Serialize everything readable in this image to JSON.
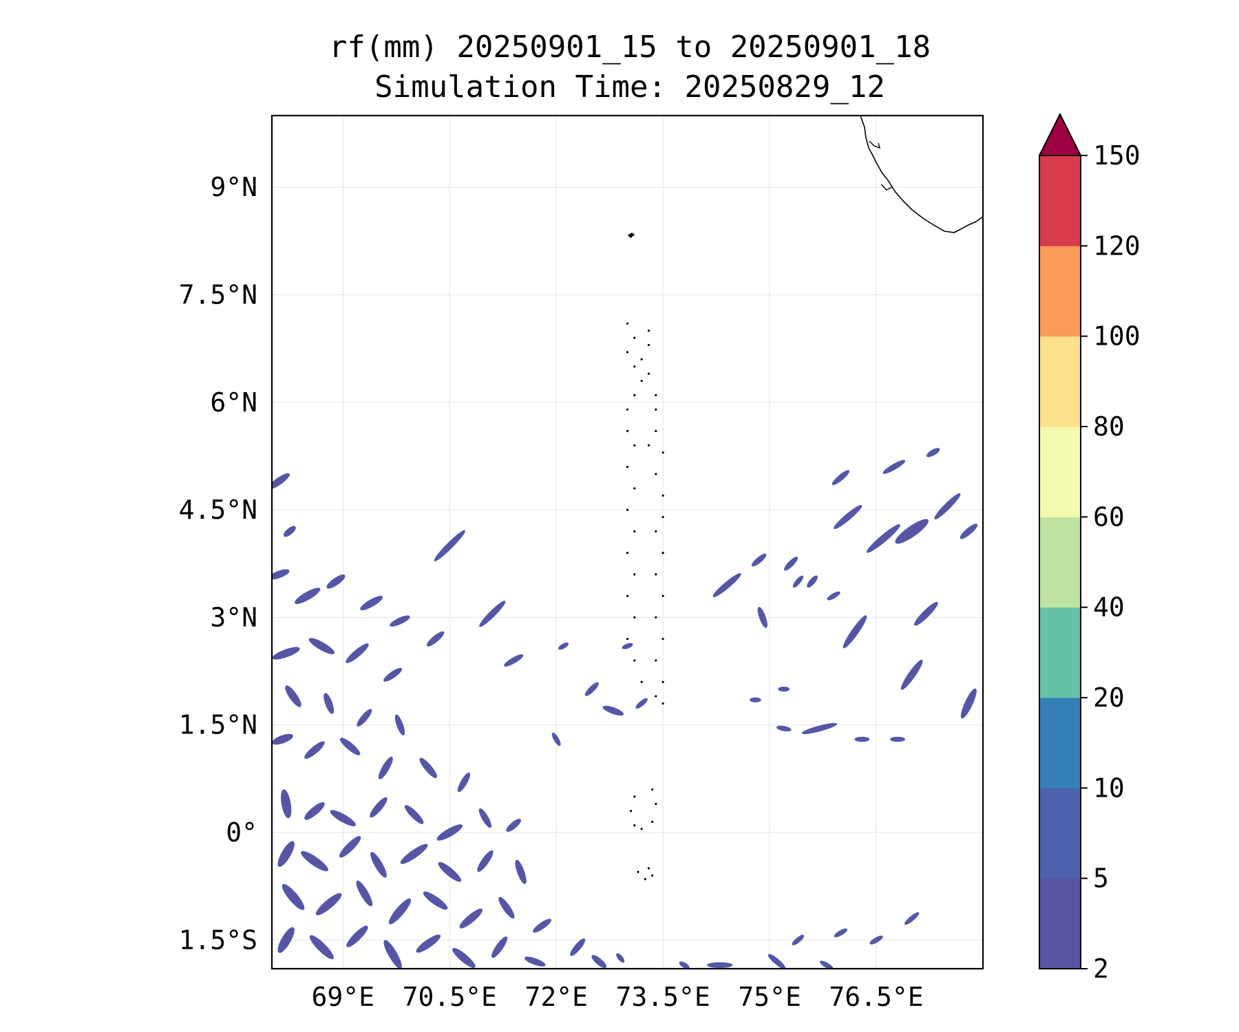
{
  "title": {
    "line1": "rf(mm) 20250901_15 to 20250901_18",
    "line2": "Simulation Time: 20250829_12"
  },
  "map": {
    "lon_range": [
      68.0,
      78.0
    ],
    "lat_range": [
      -1.9,
      10.0
    ],
    "lon_ticks": [
      {
        "value": 69.0,
        "label": "69°E"
      },
      {
        "value": 70.5,
        "label": "70.5°E"
      },
      {
        "value": 72.0,
        "label": "72°E"
      },
      {
        "value": 73.5,
        "label": "73.5°E"
      },
      {
        "value": 75.0,
        "label": "75°E"
      },
      {
        "value": 76.5,
        "label": "76.5°E"
      }
    ],
    "lat_ticks": [
      {
        "value": 9.0,
        "label": "9°N"
      },
      {
        "value": 7.5,
        "label": "7.5°N"
      },
      {
        "value": 6.0,
        "label": "6°N"
      },
      {
        "value": 4.5,
        "label": "4.5°N"
      },
      {
        "value": 3.0,
        "label": "3°N"
      },
      {
        "value": 1.5,
        "label": "1.5°N"
      },
      {
        "value": 0.0,
        "label": "0°"
      },
      {
        "value": -1.5,
        "label": "1.5°S"
      }
    ],
    "gridlines": true,
    "rain_color": "#5954a4",
    "rain_edge_color": "#4c5fad"
  },
  "colorbar": {
    "levels": [
      "2",
      "5",
      "10",
      "20",
      "40",
      "60",
      "80",
      "100",
      "120",
      "150"
    ],
    "colors": [
      "#5954a4",
      "#4e61ae",
      "#3680ba",
      "#65c1a8",
      "#bde3a1",
      "#f3faad",
      "#fde08b",
      "#fa9c57",
      "#d63c4d"
    ],
    "extend_color": "#9e0142",
    "extend": "max"
  },
  "rain_cells": [
    {
      "lon": 68.1,
      "lat": 4.9,
      "len": 0.35,
      "w": 0.09,
      "ang": -35
    },
    {
      "lon": 68.25,
      "lat": 4.2,
      "len": 0.2,
      "w": 0.08,
      "ang": -40
    },
    {
      "lon": 68.1,
      "lat": 3.6,
      "len": 0.3,
      "w": 0.09,
      "ang": -20
    },
    {
      "lon": 68.5,
      "lat": 3.3,
      "len": 0.4,
      "w": 0.1,
      "ang": -30
    },
    {
      "lon": 68.9,
      "lat": 3.5,
      "len": 0.3,
      "w": 0.09,
      "ang": -35
    },
    {
      "lon": 69.4,
      "lat": 3.2,
      "len": 0.35,
      "w": 0.09,
      "ang": -30
    },
    {
      "lon": 69.8,
      "lat": 2.95,
      "len": 0.3,
      "w": 0.08,
      "ang": -25
    },
    {
      "lon": 70.3,
      "lat": 2.7,
      "len": 0.3,
      "w": 0.08,
      "ang": -40
    },
    {
      "lon": 68.2,
      "lat": 2.5,
      "len": 0.4,
      "w": 0.1,
      "ang": -20
    },
    {
      "lon": 68.7,
      "lat": 2.6,
      "len": 0.4,
      "w": 0.1,
      "ang": 30
    },
    {
      "lon": 69.2,
      "lat": 2.5,
      "len": 0.4,
      "w": 0.09,
      "ang": -40
    },
    {
      "lon": 69.7,
      "lat": 2.2,
      "len": 0.3,
      "w": 0.08,
      "ang": -35
    },
    {
      "lon": 68.3,
      "lat": 1.9,
      "len": 0.35,
      "w": 0.1,
      "ang": 55
    },
    {
      "lon": 68.8,
      "lat": 1.8,
      "len": 0.3,
      "w": 0.09,
      "ang": 70
    },
    {
      "lon": 69.3,
      "lat": 1.6,
      "len": 0.3,
      "w": 0.08,
      "ang": -50
    },
    {
      "lon": 69.8,
      "lat": 1.5,
      "len": 0.3,
      "w": 0.08,
      "ang": 70
    },
    {
      "lon": 68.15,
      "lat": 1.3,
      "len": 0.3,
      "w": 0.1,
      "ang": -20
    },
    {
      "lon": 68.6,
      "lat": 1.15,
      "len": 0.35,
      "w": 0.09,
      "ang": -40
    },
    {
      "lon": 69.1,
      "lat": 1.2,
      "len": 0.35,
      "w": 0.09,
      "ang": 40
    },
    {
      "lon": 69.6,
      "lat": 0.9,
      "len": 0.35,
      "w": 0.09,
      "ang": -60
    },
    {
      "lon": 70.2,
      "lat": 0.9,
      "len": 0.35,
      "w": 0.09,
      "ang": 50
    },
    {
      "lon": 70.7,
      "lat": 0.7,
      "len": 0.3,
      "w": 0.08,
      "ang": -60
    },
    {
      "lon": 68.2,
      "lat": 0.4,
      "len": 0.4,
      "w": 0.12,
      "ang": 80
    },
    {
      "lon": 68.6,
      "lat": 0.3,
      "len": 0.35,
      "w": 0.1,
      "ang": -40
    },
    {
      "lon": 69.0,
      "lat": 0.2,
      "len": 0.4,
      "w": 0.1,
      "ang": 30
    },
    {
      "lon": 69.5,
      "lat": 0.35,
      "len": 0.35,
      "w": 0.09,
      "ang": -50
    },
    {
      "lon": 70.0,
      "lat": 0.25,
      "len": 0.35,
      "w": 0.09,
      "ang": 45
    },
    {
      "lon": 70.5,
      "lat": 0.0,
      "len": 0.4,
      "w": 0.1,
      "ang": -30
    },
    {
      "lon": 71.0,
      "lat": 0.2,
      "len": 0.3,
      "w": 0.08,
      "ang": 60
    },
    {
      "lon": 71.4,
      "lat": 0.1,
      "len": 0.25,
      "w": 0.08,
      "ang": -40
    },
    {
      "lon": 68.2,
      "lat": -0.3,
      "len": 0.4,
      "w": 0.12,
      "ang": -60
    },
    {
      "lon": 68.6,
      "lat": -0.4,
      "len": 0.45,
      "w": 0.11,
      "ang": 35
    },
    {
      "lon": 69.1,
      "lat": -0.2,
      "len": 0.4,
      "w": 0.1,
      "ang": -45
    },
    {
      "lon": 69.5,
      "lat": -0.45,
      "len": 0.4,
      "w": 0.1,
      "ang": 60
    },
    {
      "lon": 70.0,
      "lat": -0.3,
      "len": 0.45,
      "w": 0.1,
      "ang": -35
    },
    {
      "lon": 70.5,
      "lat": -0.55,
      "len": 0.4,
      "w": 0.1,
      "ang": 40
    },
    {
      "lon": 71.0,
      "lat": -0.4,
      "len": 0.35,
      "w": 0.09,
      "ang": -55
    },
    {
      "lon": 71.5,
      "lat": -0.55,
      "len": 0.35,
      "w": 0.09,
      "ang": 70
    },
    {
      "lon": 68.3,
      "lat": -0.9,
      "len": 0.45,
      "w": 0.12,
      "ang": 50
    },
    {
      "lon": 68.8,
      "lat": -1.0,
      "len": 0.45,
      "w": 0.11,
      "ang": -40
    },
    {
      "lon": 69.3,
      "lat": -0.85,
      "len": 0.4,
      "w": 0.1,
      "ang": 60
    },
    {
      "lon": 69.8,
      "lat": -1.1,
      "len": 0.45,
      "w": 0.11,
      "ang": -50
    },
    {
      "lon": 70.3,
      "lat": -0.95,
      "len": 0.4,
      "w": 0.1,
      "ang": 35
    },
    {
      "lon": 70.8,
      "lat": -1.2,
      "len": 0.4,
      "w": 0.1,
      "ang": -40
    },
    {
      "lon": 71.3,
      "lat": -1.05,
      "len": 0.35,
      "w": 0.09,
      "ang": 55
    },
    {
      "lon": 71.8,
      "lat": -1.3,
      "len": 0.3,
      "w": 0.08,
      "ang": -35
    },
    {
      "lon": 68.2,
      "lat": -1.5,
      "len": 0.4,
      "w": 0.12,
      "ang": -60
    },
    {
      "lon": 68.7,
      "lat": -1.6,
      "len": 0.45,
      "w": 0.11,
      "ang": 45
    },
    {
      "lon": 69.2,
      "lat": -1.45,
      "len": 0.4,
      "w": 0.1,
      "ang": -45
    },
    {
      "lon": 69.7,
      "lat": -1.7,
      "len": 0.45,
      "w": 0.11,
      "ang": 60
    },
    {
      "lon": 70.2,
      "lat": -1.55,
      "len": 0.4,
      "w": 0.1,
      "ang": -35
    },
    {
      "lon": 70.7,
      "lat": -1.75,
      "len": 0.4,
      "w": 0.1,
      "ang": 40
    },
    {
      "lon": 71.2,
      "lat": -1.6,
      "len": 0.35,
      "w": 0.09,
      "ang": -55
    },
    {
      "lon": 71.7,
      "lat": -1.8,
      "len": 0.3,
      "w": 0.08,
      "ang": 20
    },
    {
      "lon": 72.3,
      "lat": -1.6,
      "len": 0.3,
      "w": 0.08,
      "ang": -50
    },
    {
      "lon": 72.6,
      "lat": -1.8,
      "len": 0.25,
      "w": 0.08,
      "ang": 40
    },
    {
      "lon": 70.5,
      "lat": 4.0,
      "len": 0.6,
      "w": 0.08,
      "ang": -45
    },
    {
      "lon": 71.1,
      "lat": 3.05,
      "len": 0.5,
      "w": 0.08,
      "ang": -45
    },
    {
      "lon": 71.4,
      "lat": 2.4,
      "len": 0.3,
      "w": 0.07,
      "ang": -30
    },
    {
      "lon": 72.5,
      "lat": 2.0,
      "len": 0.25,
      "w": 0.07,
      "ang": -45
    },
    {
      "lon": 72.8,
      "lat": 1.7,
      "len": 0.3,
      "w": 0.08,
      "ang": 20
    },
    {
      "lon": 72.0,
      "lat": 1.3,
      "len": 0.2,
      "w": 0.06,
      "ang": 60
    },
    {
      "lon": 73.2,
      "lat": 1.8,
      "len": 0.2,
      "w": 0.06,
      "ang": -40
    },
    {
      "lon": 73.0,
      "lat": 2.6,
      "len": 0.15,
      "w": 0.05,
      "ang": -20
    },
    {
      "lon": 72.1,
      "lat": 2.6,
      "len": 0.15,
      "w": 0.05,
      "ang": -30
    },
    {
      "lon": 74.4,
      "lat": 3.45,
      "len": 0.5,
      "w": 0.08,
      "ang": -40
    },
    {
      "lon": 74.9,
      "lat": 3.0,
      "len": 0.3,
      "w": 0.08,
      "ang": 70
    },
    {
      "lon": 74.85,
      "lat": 3.8,
      "len": 0.25,
      "w": 0.07,
      "ang": -40
    },
    {
      "lon": 75.3,
      "lat": 3.75,
      "len": 0.25,
      "w": 0.07,
      "ang": -45
    },
    {
      "lon": 75.6,
      "lat": 3.5,
      "len": 0.2,
      "w": 0.07,
      "ang": -50
    },
    {
      "lon": 76.1,
      "lat": 4.4,
      "len": 0.5,
      "w": 0.08,
      "ang": -40
    },
    {
      "lon": 76.6,
      "lat": 4.1,
      "len": 0.6,
      "w": 0.09,
      "ang": -40
    },
    {
      "lon": 77.0,
      "lat": 4.2,
      "len": 0.55,
      "w": 0.14,
      "ang": -35
    },
    {
      "lon": 77.5,
      "lat": 4.55,
      "len": 0.5,
      "w": 0.08,
      "ang": -45
    },
    {
      "lon": 77.8,
      "lat": 4.2,
      "len": 0.3,
      "w": 0.08,
      "ang": -40
    },
    {
      "lon": 76.0,
      "lat": 4.95,
      "len": 0.3,
      "w": 0.07,
      "ang": -40
    },
    {
      "lon": 76.75,
      "lat": 5.1,
      "len": 0.35,
      "w": 0.07,
      "ang": -30
    },
    {
      "lon": 77.3,
      "lat": 5.3,
      "len": 0.2,
      "w": 0.07,
      "ang": -30
    },
    {
      "lon": 76.2,
      "lat": 2.8,
      "len": 0.55,
      "w": 0.09,
      "ang": -55
    },
    {
      "lon": 77.2,
      "lat": 3.05,
      "len": 0.45,
      "w": 0.09,
      "ang": -45
    },
    {
      "lon": 77.0,
      "lat": 2.2,
      "len": 0.5,
      "w": 0.09,
      "ang": -55
    },
    {
      "lon": 77.8,
      "lat": 1.8,
      "len": 0.45,
      "w": 0.1,
      "ang": -65
    },
    {
      "lon": 75.7,
      "lat": 1.45,
      "len": 0.5,
      "w": 0.07,
      "ang": -15
    },
    {
      "lon": 75.2,
      "lat": 1.45,
      "len": 0.2,
      "w": 0.06,
      "ang": 10
    },
    {
      "lon": 76.3,
      "lat": 1.3,
      "len": 0.2,
      "w": 0.06,
      "ang": 0
    },
    {
      "lon": 76.8,
      "lat": 1.3,
      "len": 0.2,
      "w": 0.06,
      "ang": 0
    },
    {
      "lon": 75.4,
      "lat": 3.5,
      "len": 0.2,
      "w": 0.06,
      "ang": -50
    },
    {
      "lon": 75.9,
      "lat": 3.3,
      "len": 0.2,
      "w": 0.06,
      "ang": -30
    },
    {
      "lon": 75.1,
      "lat": -1.8,
      "len": 0.3,
      "w": 0.07,
      "ang": 40
    },
    {
      "lon": 74.3,
      "lat": -1.85,
      "len": 0.35,
      "w": 0.07,
      "ang": 0
    },
    {
      "lon": 75.4,
      "lat": -1.5,
      "len": 0.2,
      "w": 0.06,
      "ang": -40
    },
    {
      "lon": 76.0,
      "lat": -1.4,
      "len": 0.2,
      "w": 0.06,
      "ang": -30
    },
    {
      "lon": 76.5,
      "lat": -1.5,
      "len": 0.2,
      "w": 0.06,
      "ang": -30
    },
    {
      "lon": 77.0,
      "lat": -1.2,
      "len": 0.25,
      "w": 0.06,
      "ang": -40
    },
    {
      "lon": 75.8,
      "lat": -1.85,
      "len": 0.2,
      "w": 0.06,
      "ang": 30
    },
    {
      "lon": 73.8,
      "lat": -1.85,
      "len": 0.15,
      "w": 0.06,
      "ang": 30
    },
    {
      "lon": 72.9,
      "lat": -1.75,
      "len": 0.15,
      "w": 0.05,
      "ang": 50
    },
    {
      "lon": 74.8,
      "lat": 1.85,
      "len": 0.15,
      "w": 0.05,
      "ang": 0
    },
    {
      "lon": 75.2,
      "lat": 2.0,
      "len": 0.15,
      "w": 0.05,
      "ang": 0
    }
  ]
}
